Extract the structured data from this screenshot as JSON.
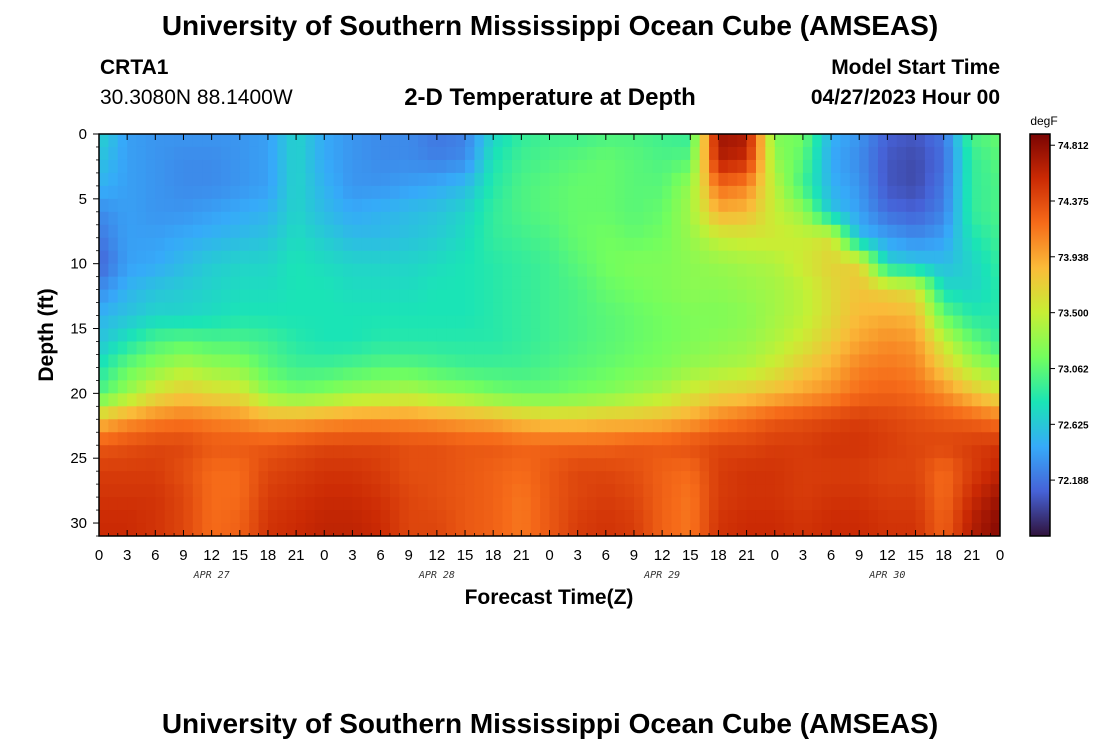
{
  "header": {
    "title": "University of Southern Mississippi Ocean Cube (AMSEAS)",
    "station": "CRTA1",
    "coords": "30.3080N  88.1400W",
    "plot_title": "2-D Temperature at Depth",
    "model_start_label": "Model Start Time",
    "model_start_value": "04/27/2023 Hour 00"
  },
  "footer": {
    "title": "University of Southern Mississippi Ocean Cube (AMSEAS)"
  },
  "chart_data": {
    "type": "heatmap",
    "title": "2-D Temperature at Depth",
    "xlabel": "Forecast Time(Z)",
    "ylabel": "Depth (ft)",
    "x_range_hours": [
      0,
      96
    ],
    "y_range_ft": [
      0,
      31
    ],
    "x_ticks": [
      "0",
      "3",
      "6",
      "9",
      "12",
      "15",
      "18",
      "21",
      "0",
      "3",
      "6",
      "9",
      "12",
      "15",
      "18",
      "21",
      "0",
      "3",
      "6",
      "9",
      "12",
      "15",
      "18",
      "21",
      "0",
      "3",
      "6",
      "9",
      "12",
      "15",
      "18",
      "21",
      "0"
    ],
    "date_labels": [
      {
        "text": "APR 27",
        "hour": 12
      },
      {
        "text": "APR 28",
        "hour": 36
      },
      {
        "text": "APR 29",
        "hour": 60
      },
      {
        "text": "APR 30",
        "hour": 84
      }
    ],
    "y_ticks": [
      "0",
      "5",
      "10",
      "15",
      "20",
      "25",
      "30"
    ],
    "colorbar": {
      "unit": "degF",
      "min": 71.75,
      "max": 74.9,
      "ticks": [
        "74.812",
        "74.375",
        "73.938",
        "73.500",
        "73.062",
        "72.625",
        "72.188"
      ],
      "colormap": [
        "#30123b",
        "#4662d7",
        "#36aaf9",
        "#1ae4b6",
        "#72fe5e",
        "#c7ef34",
        "#fabb39",
        "#f66b19",
        "#cb2a04",
        "#7a0403"
      ]
    },
    "time_hours": [
      0,
      3,
      6,
      9,
      12,
      15,
      18,
      21,
      24,
      27,
      30,
      33,
      36,
      39,
      42,
      45,
      48,
      51,
      54,
      57,
      60,
      63,
      66,
      69,
      72,
      75,
      78,
      81,
      84,
      87,
      90,
      93,
      96
    ],
    "depths_ft": [
      0,
      2,
      4,
      6,
      8,
      10,
      12,
      14,
      16,
      18,
      20,
      22,
      24,
      26,
      28,
      30
    ],
    "temperature_degF": [
      [
        72.7,
        72.4,
        72.35,
        72.35,
        72.35,
        72.35,
        72.4,
        72.7,
        72.45,
        72.35,
        72.3,
        72.3,
        72.2,
        72.25,
        72.7,
        72.9,
        72.95,
        72.95,
        73.0,
        73.0,
        72.95,
        72.9,
        74.75,
        74.7,
        73.2,
        73.15,
        72.5,
        72.35,
        72.1,
        72.05,
        72.2,
        73.0,
        73.1
      ],
      [
        72.6,
        72.4,
        72.35,
        72.3,
        72.3,
        72.35,
        72.4,
        72.7,
        72.45,
        72.35,
        72.3,
        72.3,
        72.25,
        72.3,
        72.8,
        72.95,
        73.0,
        73.05,
        73.1,
        73.05,
        73.0,
        73.05,
        74.65,
        74.55,
        73.3,
        73.05,
        72.45,
        72.3,
        72.05,
        72.0,
        72.15,
        72.9,
        73.05
      ],
      [
        72.5,
        72.4,
        72.35,
        72.3,
        72.3,
        72.35,
        72.4,
        72.7,
        72.5,
        72.35,
        72.35,
        72.4,
        72.45,
        72.55,
        72.85,
        73.0,
        73.05,
        73.1,
        73.1,
        73.05,
        73.05,
        73.3,
        74.2,
        74.1,
        73.45,
        72.95,
        72.5,
        72.35,
        72.05,
        72.0,
        72.2,
        72.9,
        73.0
      ],
      [
        72.3,
        72.4,
        72.35,
        72.35,
        72.4,
        72.45,
        72.5,
        72.7,
        72.55,
        72.45,
        72.5,
        72.55,
        72.6,
        72.7,
        72.9,
        73.0,
        73.05,
        73.1,
        73.1,
        73.05,
        73.1,
        73.35,
        73.9,
        73.85,
        73.5,
        73.3,
        72.6,
        72.4,
        72.15,
        72.1,
        72.25,
        72.9,
        73.0
      ],
      [
        72.2,
        72.4,
        72.4,
        72.45,
        72.5,
        72.55,
        72.6,
        72.75,
        72.65,
        72.55,
        72.55,
        72.6,
        72.65,
        72.75,
        72.9,
        72.95,
        73.0,
        73.1,
        73.15,
        73.1,
        73.15,
        73.3,
        73.5,
        73.55,
        73.55,
        73.5,
        73.6,
        72.55,
        72.4,
        72.3,
        72.4,
        72.8,
        72.95
      ],
      [
        72.1,
        72.4,
        72.45,
        72.55,
        72.65,
        72.7,
        72.7,
        72.8,
        72.75,
        72.7,
        72.7,
        72.7,
        72.75,
        72.8,
        72.85,
        72.9,
        72.95,
        73.05,
        73.15,
        73.2,
        73.2,
        73.25,
        73.3,
        73.35,
        73.4,
        73.55,
        73.7,
        73.7,
        72.7,
        72.6,
        72.55,
        72.7,
        72.9
      ],
      [
        72.3,
        72.5,
        72.6,
        72.65,
        72.7,
        72.75,
        72.75,
        72.8,
        72.8,
        72.75,
        72.75,
        72.75,
        72.8,
        72.8,
        72.85,
        72.9,
        72.95,
        73.0,
        73.1,
        73.15,
        73.2,
        73.25,
        73.25,
        73.3,
        73.35,
        73.45,
        73.65,
        73.8,
        73.7,
        73.6,
        72.75,
        72.7,
        72.85
      ],
      [
        72.5,
        72.6,
        72.7,
        72.7,
        72.75,
        72.8,
        72.8,
        72.8,
        72.8,
        72.8,
        72.8,
        72.8,
        72.8,
        72.8,
        72.85,
        72.9,
        72.95,
        73.0,
        73.05,
        73.1,
        73.15,
        73.2,
        73.2,
        73.25,
        73.35,
        73.45,
        73.65,
        73.85,
        73.9,
        73.85,
        73.1,
        72.85,
        72.85
      ],
      [
        72.6,
        72.8,
        73.0,
        73.05,
        73.0,
        73.0,
        72.95,
        72.85,
        72.8,
        72.8,
        72.85,
        72.85,
        72.85,
        72.85,
        72.85,
        72.9,
        72.95,
        73.0,
        73.05,
        73.1,
        73.15,
        73.2,
        73.25,
        73.3,
        73.4,
        73.55,
        73.75,
        73.95,
        74.05,
        74.0,
        73.5,
        73.1,
        72.9
      ],
      [
        72.8,
        73.1,
        73.25,
        73.4,
        73.3,
        73.25,
        73.05,
        72.95,
        72.95,
        73.0,
        73.05,
        73.05,
        73.0,
        72.95,
        72.95,
        72.95,
        73.0,
        73.05,
        73.1,
        73.15,
        73.2,
        73.3,
        73.35,
        73.4,
        73.55,
        73.75,
        73.9,
        74.1,
        74.15,
        74.1,
        73.75,
        73.4,
        73.2
      ],
      [
        73.0,
        73.3,
        73.6,
        73.75,
        73.65,
        73.6,
        73.25,
        73.15,
        73.2,
        73.3,
        73.35,
        73.4,
        73.3,
        73.25,
        73.15,
        73.1,
        73.1,
        73.15,
        73.2,
        73.3,
        73.4,
        73.55,
        73.7,
        73.75,
        73.85,
        73.95,
        74.05,
        74.2,
        74.25,
        74.2,
        74.05,
        73.8,
        73.6
      ],
      [
        73.8,
        74.0,
        74.1,
        74.15,
        74.1,
        74.05,
        73.95,
        73.95,
        74.0,
        74.05,
        74.05,
        74.05,
        74.0,
        73.95,
        73.9,
        73.8,
        73.75,
        73.75,
        73.8,
        73.8,
        73.85,
        73.95,
        74.1,
        74.2,
        74.3,
        74.35,
        74.4,
        74.45,
        74.4,
        74.35,
        74.3,
        74.25,
        74.15
      ],
      [
        74.3,
        74.35,
        74.4,
        74.4,
        74.3,
        74.3,
        74.3,
        74.35,
        74.4,
        74.4,
        74.4,
        74.35,
        74.35,
        74.3,
        74.3,
        74.25,
        74.25,
        74.25,
        74.25,
        74.3,
        74.3,
        74.35,
        74.4,
        74.4,
        74.45,
        74.45,
        74.5,
        74.5,
        74.45,
        74.4,
        74.4,
        74.45,
        74.5
      ],
      [
        74.45,
        74.45,
        74.45,
        74.35,
        74.2,
        74.2,
        74.4,
        74.45,
        74.5,
        74.5,
        74.45,
        74.35,
        74.35,
        74.3,
        74.25,
        74.2,
        74.3,
        74.4,
        74.4,
        74.35,
        74.25,
        74.2,
        74.45,
        74.5,
        74.5,
        74.45,
        74.45,
        74.45,
        74.4,
        74.4,
        74.2,
        74.45,
        74.6
      ],
      [
        74.5,
        74.5,
        74.5,
        74.4,
        74.2,
        74.2,
        74.45,
        74.5,
        74.55,
        74.55,
        74.5,
        74.4,
        74.35,
        74.3,
        74.25,
        74.15,
        74.3,
        74.4,
        74.45,
        74.4,
        74.25,
        74.15,
        74.45,
        74.5,
        74.5,
        74.45,
        74.5,
        74.5,
        74.45,
        74.45,
        74.2,
        74.55,
        74.75
      ],
      [
        74.55,
        74.55,
        74.5,
        74.4,
        74.2,
        74.25,
        74.5,
        74.55,
        74.6,
        74.6,
        74.55,
        74.4,
        74.4,
        74.3,
        74.25,
        74.15,
        74.3,
        74.45,
        74.5,
        74.45,
        74.25,
        74.15,
        74.5,
        74.55,
        74.55,
        74.5,
        74.55,
        74.55,
        74.5,
        74.5,
        74.25,
        74.65,
        74.85
      ]
    ]
  }
}
